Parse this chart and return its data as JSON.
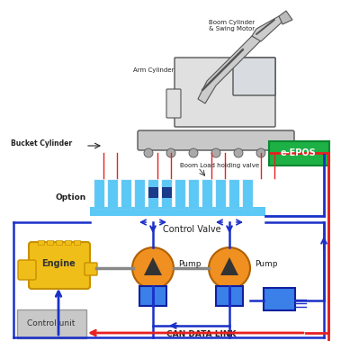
{
  "bg_color": "#ffffff",
  "excavator_labels": {
    "boom_cylinder": "Boom Cylinder\n& Swing Motor",
    "arm_cylinder": "Arm Cylinder",
    "bucket_cylinder": "Bucket Cylinder",
    "boom_load_valve": "Boom Load holding valve"
  },
  "bar_color": "#5bc8f5",
  "bar_dark_color": "#1a3a8a",
  "base_color": "#5bc8f5",
  "option_label": "Option",
  "epos_label": "e-EPOS",
  "epos_color": "#1db045",
  "epos_text_color": "#ffffff",
  "engine_label": "Engine",
  "engine_color": "#f0be18",
  "engine_edge": "#c89000",
  "pump_label": "Pump",
  "pump_color": "#f09020",
  "pump_edge": "#b06000",
  "control_unit_label": "Control unit",
  "control_unit_color": "#c8c8c8",
  "can_link_label": "CAN DATA LINK",
  "control_valve_label": "Control Valve",
  "blue_box_color": "#3a80e8",
  "pipe_blue": "#1a30c8",
  "pipe_red": "#e82020",
  "shaft_color": "#888888",
  "label_color": "#222222",
  "red_line_color": "#e85050"
}
